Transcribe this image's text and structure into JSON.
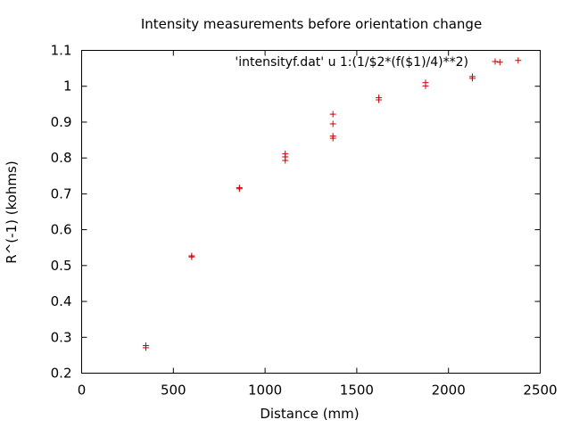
{
  "chart_data": {
    "type": "scatter",
    "title": "Intensity measurements before orientation change",
    "xlabel": "Distance (mm)",
    "ylabel": "R^(-1) (kohms)",
    "xlim": [
      0,
      2500
    ],
    "ylim": [
      0.2,
      1.1
    ],
    "xticks": [
      "0",
      "500",
      "1000",
      "1500",
      "2000",
      "2500"
    ],
    "yticks": [
      "0.2",
      "0.3",
      "0.4",
      "0.5",
      "0.6",
      "0.7",
      "0.8",
      "0.9",
      "1",
      "1.1"
    ],
    "grid": false,
    "legend_position": "top-right",
    "series": [
      {
        "name": "'intensityf.dat' u 1:(1/$2*(f($1)/4)**2)",
        "color": "#cc0000",
        "marker": "plus",
        "points": [
          {
            "x": 350,
            "y": 0.277
          },
          {
            "x": 350,
            "y": 0.271
          },
          {
            "x": 600,
            "y": 0.527
          },
          {
            "x": 600,
            "y": 0.524
          },
          {
            "x": 860,
            "y": 0.717
          },
          {
            "x": 860,
            "y": 0.714
          },
          {
            "x": 1110,
            "y": 0.812
          },
          {
            "x": 1110,
            "y": 0.803
          },
          {
            "x": 1110,
            "y": 0.793
          },
          {
            "x": 1370,
            "y": 0.922
          },
          {
            "x": 1370,
            "y": 0.895
          },
          {
            "x": 1370,
            "y": 0.861
          },
          {
            "x": 1370,
            "y": 0.855
          },
          {
            "x": 1620,
            "y": 0.968
          },
          {
            "x": 1620,
            "y": 0.962
          },
          {
            "x": 1875,
            "y": 1.01
          },
          {
            "x": 1875,
            "y": 1.001
          },
          {
            "x": 2130,
            "y": 1.027
          },
          {
            "x": 2130,
            "y": 1.022
          },
          {
            "x": 2280,
            "y": 1.067
          },
          {
            "x": 2380,
            "y": 1.072
          }
        ]
      }
    ]
  }
}
